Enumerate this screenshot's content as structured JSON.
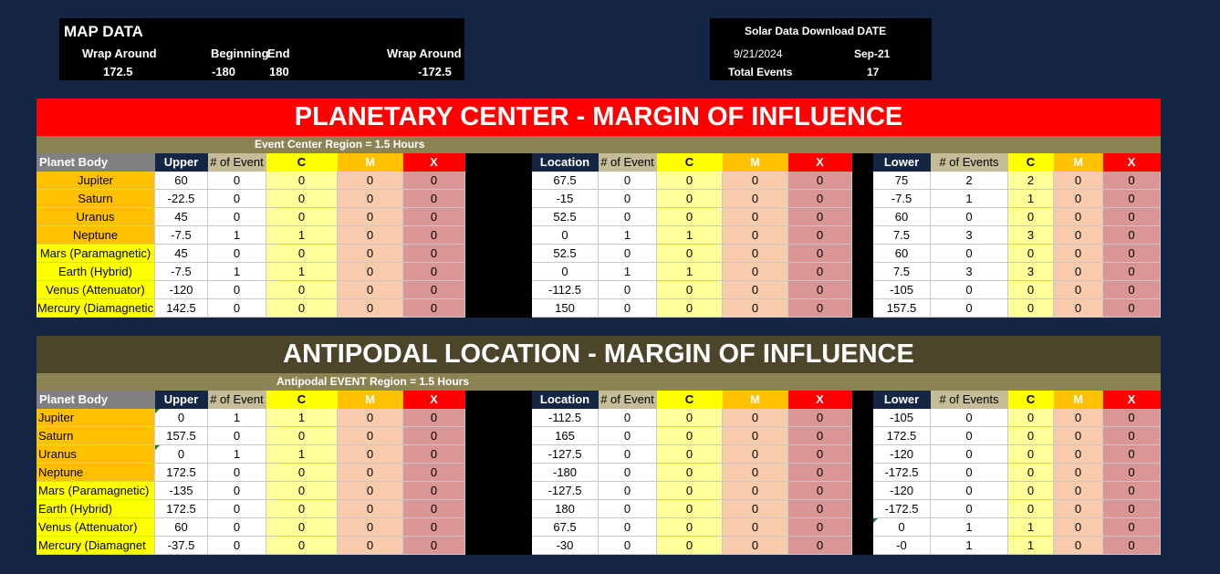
{
  "map_data": {
    "title": "MAP DATA",
    "headers": [
      "Wrap Around",
      "Beginning",
      "End",
      "Wrap Around"
    ],
    "values": [
      "172.5",
      "-180",
      "180",
      "-172.5"
    ]
  },
  "solar": {
    "title": "Solar Data Download DATE",
    "date_full": "9/21/2024",
    "date_short": "Sep-21",
    "total_label": "Total Events",
    "total_value": "17"
  },
  "sections": [
    {
      "title": "PLANETARY CENTER - MARGIN OF INFLUENCE",
      "subtitle": "Event Center Region = 1.5 Hours",
      "headers": {
        "planet": "Planet Body",
        "upper": "Upper",
        "upper_events": "# of Event",
        "location": "Location",
        "location_events": "# of Event",
        "lower": "Lower",
        "lower_events": "# of Events",
        "c": "C",
        "m": "M",
        "x": "X"
      },
      "rows": [
        {
          "planet": "Jupiter",
          "upper": [
            "60",
            "0",
            "0",
            "0",
            "0"
          ],
          "location": [
            "67.5",
            "0",
            "0",
            "0",
            "0"
          ],
          "lower": [
            "75",
            "2",
            "2",
            "0",
            "0"
          ]
        },
        {
          "planet": "Saturn",
          "upper": [
            "-22.5",
            "0",
            "0",
            "0",
            "0"
          ],
          "location": [
            "-15",
            "0",
            "0",
            "0",
            "0"
          ],
          "lower": [
            "-7.5",
            "1",
            "1",
            "0",
            "0"
          ]
        },
        {
          "planet": "Uranus",
          "upper": [
            "45",
            "0",
            "0",
            "0",
            "0"
          ],
          "location": [
            "52.5",
            "0",
            "0",
            "0",
            "0"
          ],
          "lower": [
            "60",
            "0",
            "0",
            "0",
            "0"
          ]
        },
        {
          "planet": "Neptune",
          "upper": [
            "-7.5",
            "1",
            "1",
            "0",
            "0"
          ],
          "location": [
            "0",
            "1",
            "1",
            "0",
            "0"
          ],
          "lower": [
            "7.5",
            "3",
            "3",
            "0",
            "0"
          ]
        },
        {
          "planet": "Mars (Paramagnetic)",
          "upper": [
            "45",
            "0",
            "0",
            "0",
            "0"
          ],
          "location": [
            "52.5",
            "0",
            "0",
            "0",
            "0"
          ],
          "lower": [
            "60",
            "0",
            "0",
            "0",
            "0"
          ]
        },
        {
          "planet": "Earth (Hybrid)",
          "upper": [
            "-7.5",
            "1",
            "1",
            "0",
            "0"
          ],
          "location": [
            "0",
            "1",
            "1",
            "0",
            "0"
          ],
          "lower": [
            "7.5",
            "3",
            "3",
            "0",
            "0"
          ]
        },
        {
          "planet": "Venus (Attenuator)",
          "upper": [
            "-120",
            "0",
            "0",
            "0",
            "0"
          ],
          "location": [
            "-112.5",
            "0",
            "0",
            "0",
            "0"
          ],
          "lower": [
            "-105",
            "0",
            "0",
            "0",
            "0"
          ]
        },
        {
          "planet": "Mercury (Diamagnetic",
          "upper": [
            "142.5",
            "0",
            "0",
            "0",
            "0"
          ],
          "location": [
            "150",
            "0",
            "0",
            "0",
            "0"
          ],
          "lower": [
            "157.5",
            "0",
            "0",
            "0",
            "0"
          ]
        }
      ]
    },
    {
      "title": "ANTIPODAL LOCATION - MARGIN OF INFLUENCE",
      "subtitle": "Antipodal EVENT Region = 1.5 Hours",
      "headers": {
        "planet": "Planet Body",
        "upper": "Upper",
        "upper_events": "# of Event",
        "location": "Location",
        "location_events": "# of Event",
        "lower": "Lower",
        "lower_events": "# of Events",
        "c": "C",
        "m": "M",
        "x": "X"
      },
      "rows": [
        {
          "planet": "Jupiter",
          "upper": [
            "0",
            "1",
            "1",
            "0",
            "0"
          ],
          "location": [
            "-112.5",
            "0",
            "0",
            "0",
            "0"
          ],
          "lower": [
            "-105",
            "0",
            "0",
            "0",
            "0"
          ]
        },
        {
          "planet": "Saturn",
          "upper": [
            "157.5",
            "0",
            "0",
            "0",
            "0"
          ],
          "location": [
            "165",
            "0",
            "0",
            "0",
            "0"
          ],
          "lower": [
            "172.5",
            "0",
            "0",
            "0",
            "0"
          ]
        },
        {
          "planet": "Uranus",
          "upper": [
            "0",
            "1",
            "1",
            "0",
            "0"
          ],
          "location": [
            "-127.5",
            "0",
            "0",
            "0",
            "0"
          ],
          "lower": [
            "-120",
            "0",
            "0",
            "0",
            "0"
          ]
        },
        {
          "planet": "Neptune",
          "upper": [
            "172.5",
            "0",
            "0",
            "0",
            "0"
          ],
          "location": [
            "-180",
            "0",
            "0",
            "0",
            "0"
          ],
          "lower": [
            "-172.5",
            "0",
            "0",
            "0",
            "0"
          ]
        },
        {
          "planet": "Mars (Paramagnetic)",
          "upper": [
            "-135",
            "0",
            "0",
            "0",
            "0"
          ],
          "location": [
            "-127.5",
            "0",
            "0",
            "0",
            "0"
          ],
          "lower": [
            "-120",
            "0",
            "0",
            "0",
            "0"
          ]
        },
        {
          "planet": "Earth (Hybrid)",
          "upper": [
            "172.5",
            "0",
            "0",
            "0",
            "0"
          ],
          "location": [
            "180",
            "0",
            "0",
            "0",
            "0"
          ],
          "lower": [
            "-172.5",
            "0",
            "0",
            "0",
            "0"
          ]
        },
        {
          "planet": "Venus (Attenuator)",
          "upper": [
            "60",
            "0",
            "0",
            "0",
            "0"
          ],
          "location": [
            "67.5",
            "0",
            "0",
            "0",
            "0"
          ],
          "lower": [
            "0",
            "1",
            "1",
            "0",
            "0"
          ]
        },
        {
          "planet": "Mercury (Diamagnet",
          "upper": [
            "-37.5",
            "0",
            "0",
            "0",
            "0"
          ],
          "location": [
            "-30",
            "0",
            "0",
            "0",
            "0"
          ],
          "lower": [
            "-0",
            "1",
            "1",
            "0",
            "0"
          ]
        }
      ]
    }
  ],
  "colors": {
    "background": "#142643",
    "banner_red": "#ff0000",
    "banner_olive": "#4d4529",
    "subheader_olive": "#8c8353",
    "planet_orange": "#ffc000",
    "planet_yellow": "#ffff00",
    "c_col": "#ffff99",
    "m_col": "#f8cbad",
    "x_col": "#d99694",
    "hdr_c": "#ffff00",
    "hdr_m": "#ffc000",
    "hdr_x": "#ff0000",
    "hdr_events": "#c4bd97",
    "hdr_planet": "#808080"
  }
}
